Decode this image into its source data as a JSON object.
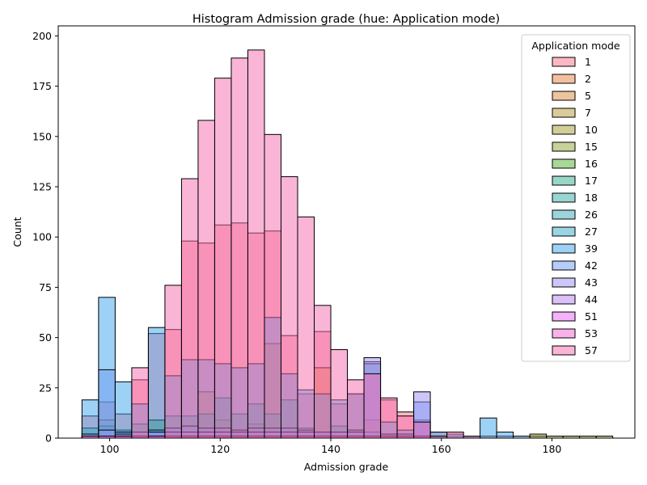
{
  "chart_data": {
    "type": "bar",
    "title": "Histogram Admission grade (hue: Application mode)",
    "xlabel": "Admission grade",
    "ylabel": "Count",
    "xlim": [
      90.7,
      195.0
    ],
    "ylim": [
      0,
      205
    ],
    "xticks": [
      100,
      120,
      140,
      160,
      180
    ],
    "yticks": [
      0,
      25,
      50,
      75,
      100,
      125,
      150,
      175,
      200
    ],
    "bin_edges": [
      95,
      98,
      101,
      104,
      107,
      110,
      113,
      116,
      119,
      122,
      125,
      128,
      131,
      134,
      137,
      140,
      143,
      146,
      149,
      152,
      155,
      158,
      161,
      164,
      167,
      170,
      173,
      176,
      179,
      182,
      185,
      188,
      191
    ],
    "legend": {
      "title": "Application mode",
      "location": "upper right",
      "entries": [
        "1",
        "2",
        "5",
        "7",
        "10",
        "15",
        "16",
        "17",
        "18",
        "26",
        "27",
        "39",
        "42",
        "43",
        "44",
        "51",
        "53",
        "57"
      ]
    },
    "series": [
      {
        "name": "1",
        "color": "#f77189",
        "values": [
          11,
          18,
          12,
          29,
          52,
          54,
          98,
          97,
          106,
          107,
          102,
          103,
          51,
          22,
          53,
          17,
          22,
          38,
          19,
          13,
          9,
          3,
          1,
          1,
          1,
          1,
          0,
          1,
          0,
          0,
          0,
          0
        ]
      },
      {
        "name": "2",
        "color": "#e7823e",
        "values": [
          1,
          9,
          1,
          1,
          9,
          2,
          1,
          23,
          1,
          1,
          1,
          47,
          1,
          1,
          35,
          1,
          1,
          9,
          1,
          0,
          0,
          0,
          0,
          0,
          0,
          0,
          0,
          0,
          0,
          0,
          0,
          0
        ]
      },
      {
        "name": "5",
        "color": "#dc8a3b",
        "values": [
          0,
          0,
          0,
          0,
          0,
          0,
          0,
          3,
          2,
          2,
          2,
          0,
          2,
          0,
          0,
          0,
          0,
          0,
          0,
          0,
          0,
          0,
          0,
          0,
          0,
          0,
          0,
          0,
          0,
          0,
          0,
          0
        ]
      },
      {
        "name": "7",
        "color": "#b59a32",
        "values": [
          0,
          0,
          0,
          0,
          0,
          0,
          0,
          1,
          9,
          2,
          7,
          0,
          0,
          0,
          0,
          0,
          0,
          0,
          0,
          0,
          0,
          0,
          0,
          0,
          0,
          0,
          0,
          0,
          0,
          0,
          0,
          0
        ]
      },
      {
        "name": "10",
        "color": "#a59d31",
        "values": [
          0,
          0,
          0,
          0,
          0,
          0,
          0,
          0,
          0,
          0,
          0,
          0,
          0,
          0,
          0,
          0,
          0,
          0,
          0,
          0,
          0,
          0,
          0,
          0,
          0,
          0,
          0,
          0,
          0,
          0,
          0,
          1
        ]
      },
      {
        "name": "15",
        "color": "#8ea531",
        "values": [
          0,
          0,
          0,
          0,
          0,
          0,
          0,
          0,
          0,
          0,
          0,
          0,
          0,
          0,
          0,
          0,
          0,
          0,
          0,
          0,
          0,
          0,
          0,
          0,
          0,
          0,
          0,
          2,
          1,
          1,
          1,
          0
        ]
      },
      {
        "name": "16",
        "color": "#50b131",
        "values": [
          0,
          0,
          0,
          0,
          0,
          0,
          0,
          0,
          0,
          0,
          0,
          0,
          0,
          0,
          0,
          0,
          0,
          0,
          0,
          0,
          0,
          0,
          0,
          0,
          0,
          0,
          0,
          0,
          0,
          0,
          0,
          0
        ]
      },
      {
        "name": "17",
        "color": "#34ae91",
        "values": [
          5,
          6,
          4,
          7,
          9,
          11,
          11,
          12,
          20,
          12,
          17,
          12,
          19,
          5,
          2,
          6,
          4,
          3,
          2,
          1,
          1,
          1,
          0,
          0,
          0,
          0,
          0,
          0,
          0,
          0,
          0,
          0
        ]
      },
      {
        "name": "18",
        "color": "#36ada4",
        "values": [
          0,
          0,
          0,
          0,
          0,
          0,
          0,
          0,
          0,
          0,
          0,
          0,
          0,
          0,
          0,
          0,
          0,
          0,
          0,
          0,
          0,
          0,
          0,
          0,
          0,
          0,
          0,
          0,
          0,
          0,
          0,
          0
        ]
      },
      {
        "name": "26",
        "color": "#37abb5",
        "values": [
          0,
          0,
          0,
          0,
          0,
          0,
          0,
          0,
          0,
          0,
          0,
          0,
          0,
          0,
          0,
          0,
          0,
          0,
          0,
          0,
          0,
          0,
          0,
          0,
          0,
          0,
          0,
          0,
          0,
          0,
          0,
          0
        ]
      },
      {
        "name": "27",
        "color": "#38a9c5",
        "values": [
          0,
          0,
          0,
          0,
          0,
          0,
          0,
          0,
          0,
          0,
          0,
          0,
          0,
          0,
          0,
          0,
          0,
          0,
          0,
          0,
          0,
          0,
          0,
          0,
          0,
          0,
          0,
          0,
          0,
          0,
          0,
          0
        ]
      },
      {
        "name": "39",
        "color": "#3ba3ec",
        "values": [
          19,
          70,
          28,
          17,
          55,
          31,
          39,
          39,
          37,
          35,
          37,
          60,
          32,
          24,
          22,
          19,
          22,
          37,
          8,
          4,
          8,
          3,
          2,
          1,
          10,
          3,
          1,
          0,
          0,
          0,
          0,
          0
        ]
      },
      {
        "name": "42",
        "color": "#6e9bf4",
        "values": [
          0,
          34,
          3,
          1,
          4,
          5,
          6,
          5,
          5,
          4,
          5,
          5,
          5,
          4,
          3,
          3,
          4,
          3,
          2,
          2,
          18,
          1,
          0,
          0,
          0,
          0,
          0,
          0,
          0,
          0,
          0,
          0
        ]
      },
      {
        "name": "43",
        "color": "#9b8ff4",
        "values": [
          2,
          4,
          2,
          3,
          3,
          3,
          3,
          3,
          3,
          3,
          3,
          3,
          3,
          3,
          3,
          3,
          3,
          40,
          2,
          2,
          23,
          1,
          0,
          0,
          0,
          0,
          0,
          0,
          0,
          0,
          0,
          0
        ]
      },
      {
        "name": "44",
        "color": "#ba82f4",
        "values": [
          1,
          1,
          1,
          1,
          1,
          1,
          1,
          1,
          1,
          1,
          1,
          1,
          1,
          1,
          1,
          1,
          1,
          1,
          1,
          1,
          1,
          0,
          0,
          0,
          0,
          0,
          0,
          0,
          0,
          0,
          0,
          0
        ]
      },
      {
        "name": "51",
        "color": "#e866f4",
        "values": [
          1,
          1,
          1,
          1,
          1,
          1,
          1,
          1,
          1,
          1,
          1,
          1,
          1,
          1,
          1,
          1,
          1,
          1,
          1,
          1,
          1,
          0,
          0,
          0,
          0,
          0,
          0,
          0,
          0,
          0,
          0,
          0
        ]
      },
      {
        "name": "53",
        "color": "#f563d3",
        "values": [
          1,
          1,
          1,
          1,
          1,
          1,
          1,
          1,
          1,
          1,
          1,
          1,
          1,
          1,
          1,
          1,
          1,
          1,
          1,
          1,
          1,
          0,
          0,
          0,
          0,
          0,
          0,
          0,
          0,
          0,
          0,
          0
        ]
      },
      {
        "name": "57",
        "color": "#f66bad",
        "values": [
          0,
          0,
          0,
          35,
          0,
          76,
          129,
          158,
          179,
          189,
          193,
          151,
          130,
          110,
          66,
          44,
          29,
          32,
          20,
          11,
          8,
          1,
          3,
          1,
          0,
          0,
          0,
          0,
          0,
          0,
          0,
          0
        ]
      }
    ]
  }
}
